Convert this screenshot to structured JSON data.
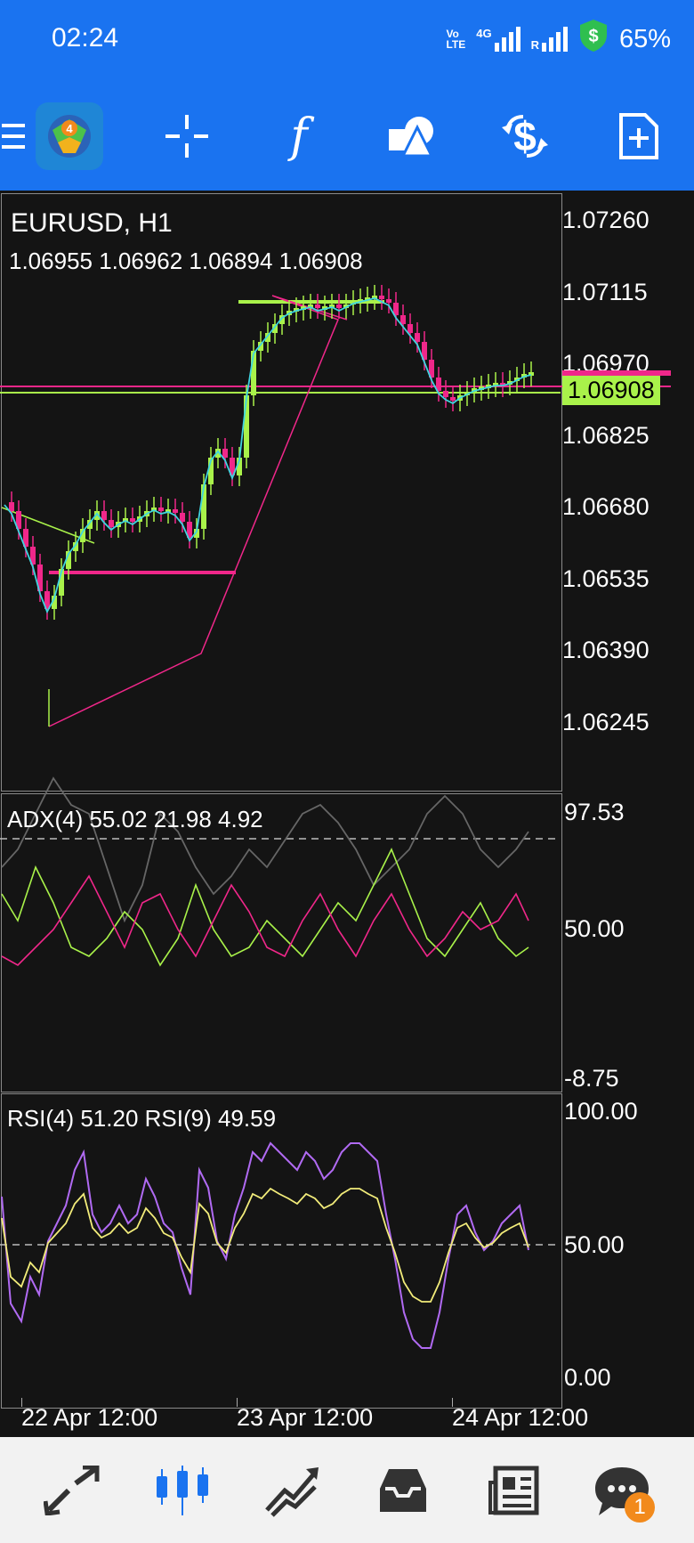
{
  "status_bar": {
    "time": "02:24",
    "volte_top": "Vo",
    "volte_bottom": "LTE",
    "net_type": "4G",
    "roaming": "R",
    "battery": "65%"
  },
  "toolbar": {
    "icons": [
      "menu-icon",
      "metatrader-logo",
      "crosshair-icon",
      "indicators-icon",
      "objects-icon",
      "trade-icon",
      "new-order-icon"
    ],
    "indicator_glyph": "f"
  },
  "chart": {
    "symbol_timeframe": "EURUSD, H1",
    "ohlc": "1.06955 1.06962 1.06894 1.06908",
    "price_axis": [
      "1.07260",
      "1.07115",
      "1.06970",
      "1.06825",
      "1.06680",
      "1.06535",
      "1.06390",
      "1.06245"
    ],
    "current_price": "1.06908",
    "colors": {
      "bull": "#a9f24a",
      "bear": "#f0278a",
      "ma": "#3fd4e0",
      "background": "#141414"
    }
  },
  "adx": {
    "label": "ADX(4) 55.02 21.98 4.92",
    "axis": [
      "97.53",
      "50.00",
      "-8.75"
    ]
  },
  "rsi": {
    "label": "RSI(4) 51.20 RSI(9) 49.59",
    "axis": [
      "100.00",
      "50.00",
      "0.00"
    ]
  },
  "time_axis": [
    "22 Apr 12:00",
    "23 Apr 12:00",
    "24 Apr 12:00"
  ],
  "bottom_nav": {
    "items": [
      "quotes-icon",
      "chart-icon",
      "trade-icon",
      "history-icon",
      "news-icon",
      "messages-icon"
    ],
    "messages_badge": "1"
  }
}
